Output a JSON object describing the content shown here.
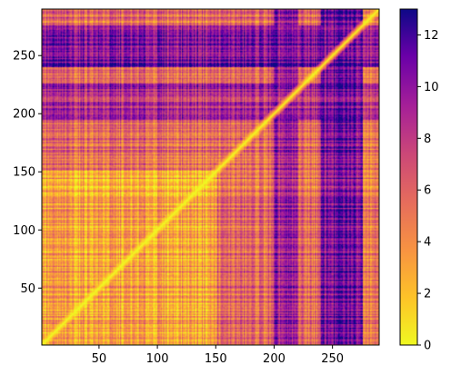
{
  "chart_data": {
    "type": "heatmap",
    "title": "",
    "xlabel": "",
    "ylabel": "",
    "colormap": "plasma_r",
    "origin": "lower",
    "n": 289,
    "xlim": [
      1,
      290
    ],
    "ylim": [
      1,
      290
    ],
    "x_ticks": [
      50,
      100,
      150,
      200,
      250
    ],
    "y_ticks": [
      50,
      100,
      150,
      200,
      250
    ],
    "colorbar": {
      "range": [
        0,
        13
      ],
      "ticks": [
        0,
        2,
        4,
        6,
        8,
        10,
        12
      ]
    },
    "structure": {
      "diagonal_value": 0,
      "base_value": 5.5,
      "dark_columns": [
        {
          "from": 200,
          "to": 220,
          "value": 9.5
        },
        {
          "from": 240,
          "to": 275,
          "value": 11
        }
      ],
      "dark_rows": [
        {
          "from": 240,
          "to": 275,
          "value": 11
        },
        {
          "from": 195,
          "to": 225,
          "value": 9
        }
      ],
      "light_region": {
        "x": [
          1,
          150
        ],
        "y": [
          1,
          150
        ],
        "value": 3
      }
    }
  }
}
